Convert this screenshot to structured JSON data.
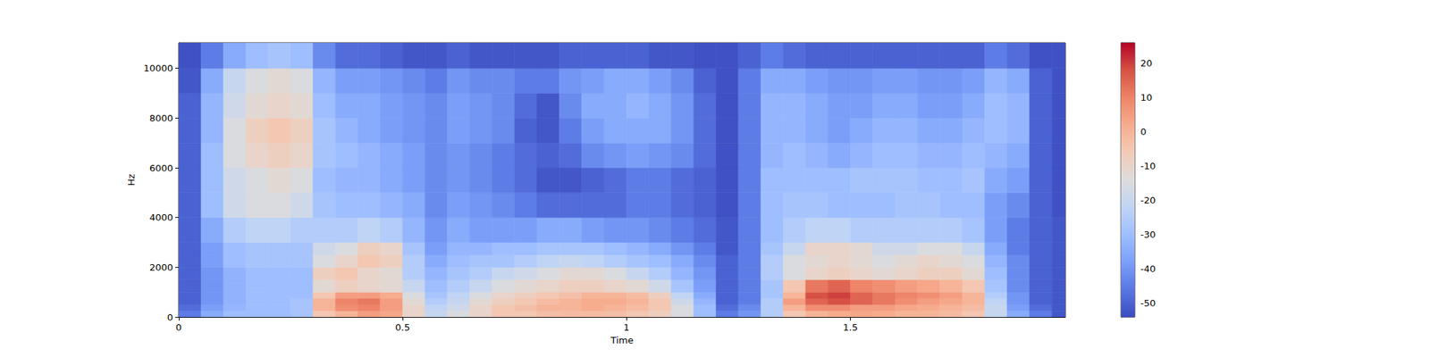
{
  "chart_data": {
    "type": "heatmap",
    "x_label": "Time",
    "y_label": "Hz",
    "xlim": [
      0,
      1.98
    ],
    "xticks": [
      0,
      0.5,
      1,
      1.5
    ],
    "ylim": [
      0,
      11025
    ],
    "yticks": [
      0,
      2000,
      4000,
      6000,
      8000,
      10000
    ],
    "x_edges": [
      0,
      0.05,
      0.1,
      0.15,
      0.2,
      0.25,
      0.3,
      0.35,
      0.4,
      0.45,
      0.5,
      0.55,
      0.6,
      0.65,
      0.7,
      0.75,
      0.8,
      0.85,
      0.9,
      0.95,
      1.0,
      1.05,
      1.1,
      1.15,
      1.2,
      1.25,
      1.3,
      1.35,
      1.4,
      1.45,
      1.5,
      1.55,
      1.6,
      1.65,
      1.7,
      1.75,
      1.8,
      1.85,
      1.9,
      1.95,
      1.98
    ],
    "y_edges": [
      0,
      250,
      500,
      750,
      1000,
      1500,
      2000,
      2500,
      3000,
      4000,
      5000,
      6000,
      7000,
      8000,
      9000,
      10000,
      11025
    ],
    "cells": [
      [
        -45,
        -35,
        -30,
        -30,
        -30,
        -28,
        -5,
        0,
        5,
        3,
        -10,
        -20,
        -15,
        -10,
        -5,
        -5,
        -3,
        -2,
        -2,
        -3,
        -5,
        -8,
        -15,
        -30,
        -45,
        -40,
        -25,
        -5,
        0,
        2,
        3,
        2,
        0,
        0,
        -2,
        -5,
        -20,
        -35,
        -45,
        -52
      ],
      [
        -48,
        -38,
        -32,
        -30,
        -30,
        -28,
        0,
        8,
        10,
        5,
        -10,
        -22,
        -18,
        -10,
        -5,
        -3,
        0,
        0,
        2,
        0,
        -2,
        -5,
        -15,
        -30,
        -48,
        -42,
        -25,
        0,
        8,
        8,
        5,
        5,
        3,
        2,
        0,
        -2,
        -20,
        -38,
        -48,
        -52
      ],
      [
        -50,
        -40,
        -33,
        -30,
        -30,
        -28,
        0,
        10,
        12,
        5,
        -12,
        -25,
        -20,
        -12,
        -8,
        -5,
        -2,
        0,
        2,
        2,
        0,
        -5,
        -18,
        -32,
        -50,
        -45,
        -25,
        5,
        15,
        18,
        15,
        12,
        8,
        5,
        3,
        0,
        -22,
        -40,
        -50,
        -52
      ],
      [
        -50,
        -40,
        -33,
        -30,
        -30,
        -30,
        -5,
        5,
        5,
        2,
        -15,
        -28,
        -22,
        -15,
        -10,
        -8,
        -5,
        -3,
        0,
        0,
        -2,
        -8,
        -22,
        -35,
        -50,
        -45,
        -28,
        0,
        18,
        20,
        15,
        12,
        10,
        8,
        5,
        0,
        -25,
        -40,
        -50,
        -52
      ],
      [
        -50,
        -40,
        -33,
        -30,
        -30,
        -30,
        -12,
        -8,
        -10,
        -12,
        -20,
        -30,
        -25,
        -20,
        -15,
        -12,
        -10,
        -8,
        -8,
        -10,
        -12,
        -18,
        -28,
        -38,
        -50,
        -45,
        -28,
        -5,
        12,
        15,
        10,
        8,
        5,
        3,
        0,
        -5,
        -28,
        -42,
        -50,
        -52
      ],
      [
        -50,
        -40,
        -33,
        -30,
        -30,
        -30,
        -8,
        -5,
        -10,
        -12,
        -25,
        -32,
        -28,
        -25,
        -20,
        -18,
        -15,
        -12,
        -12,
        -15,
        -20,
        -25,
        -32,
        -40,
        -50,
        -45,
        -25,
        -15,
        -10,
        -8,
        -10,
        -12,
        -10,
        -8,
        -8,
        -12,
        -30,
        -42,
        -50,
        -52
      ],
      [
        -50,
        -38,
        -30,
        -28,
        -28,
        -28,
        -15,
        -10,
        -5,
        -8,
        -25,
        -35,
        -30,
        -28,
        -28,
        -25,
        -22,
        -20,
        -22,
        -25,
        -28,
        -30,
        -35,
        -42,
        -50,
        -45,
        -25,
        -15,
        -12,
        -10,
        -12,
        -15,
        -12,
        -10,
        -12,
        -15,
        -32,
        -42,
        -50,
        -52
      ],
      [
        -50,
        -38,
        -30,
        -28,
        -28,
        -28,
        -18,
        -15,
        -8,
        -10,
        -28,
        -38,
        -32,
        -32,
        -30,
        -30,
        -28,
        -28,
        -28,
        -30,
        -32,
        -35,
        -40,
        -45,
        -52,
        -45,
        -28,
        -20,
        -10,
        -10,
        -12,
        -18,
        -18,
        -15,
        -15,
        -20,
        -35,
        -45,
        -50,
        -52
      ],
      [
        -50,
        -35,
        -25,
        -22,
        -22,
        -25,
        -25,
        -25,
        -22,
        -25,
        -32,
        -40,
        -35,
        -38,
        -38,
        -38,
        -35,
        -35,
        -38,
        -40,
        -40,
        -42,
        -45,
        -48,
        -52,
        -45,
        -30,
        -25,
        -22,
        -22,
        -25,
        -25,
        -25,
        -25,
        -25,
        -28,
        -38,
        -45,
        -50,
        -52
      ],
      [
        -50,
        -30,
        -18,
        -15,
        -15,
        -18,
        -28,
        -30,
        -30,
        -32,
        -35,
        -42,
        -38,
        -40,
        -42,
        -45,
        -48,
        -48,
        -48,
        -48,
        -45,
        -45,
        -48,
        -50,
        -53,
        -45,
        -30,
        -28,
        -28,
        -30,
        -30,
        -30,
        -28,
        -28,
        -30,
        -30,
        -38,
        -42,
        -50,
        -53
      ],
      [
        -50,
        -30,
        -18,
        -15,
        -12,
        -15,
        -30,
        -32,
        -32,
        -35,
        -38,
        -42,
        -40,
        -42,
        -45,
        -48,
        -52,
        -52,
        -50,
        -48,
        -45,
        -45,
        -48,
        -50,
        -53,
        -45,
        -30,
        -30,
        -30,
        -30,
        -28,
        -28,
        -28,
        -30,
        -30,
        -28,
        -35,
        -38,
        -50,
        -53
      ],
      [
        -50,
        -30,
        -15,
        -10,
        -8,
        -10,
        -28,
        -30,
        -32,
        -35,
        -38,
        -42,
        -40,
        -42,
        -45,
        -48,
        -50,
        -48,
        -42,
        -40,
        -38,
        -40,
        -42,
        -48,
        -53,
        -45,
        -32,
        -30,
        -32,
        -35,
        -32,
        -30,
        -30,
        -32,
        -32,
        -30,
        -32,
        -35,
        -50,
        -53
      ],
      [
        -50,
        -32,
        -15,
        -8,
        -5,
        -8,
        -28,
        -32,
        -35,
        -38,
        -40,
        -42,
        -38,
        -40,
        -42,
        -50,
        -52,
        -45,
        -38,
        -35,
        -35,
        -35,
        -40,
        -48,
        -53,
        -45,
        -32,
        -32,
        -35,
        -38,
        -35,
        -32,
        -32,
        -35,
        -35,
        -32,
        -30,
        -32,
        -50,
        -53
      ],
      [
        -50,
        -32,
        -18,
        -12,
        -10,
        -12,
        -30,
        -35,
        -35,
        -38,
        -40,
        -42,
        -38,
        -40,
        -42,
        -48,
        -52,
        -42,
        -35,
        -35,
        -32,
        -35,
        -40,
        -48,
        -53,
        -45,
        -32,
        -32,
        -35,
        -38,
        -38,
        -35,
        -35,
        -38,
        -38,
        -35,
        -30,
        -32,
        -50,
        -53
      ],
      [
        -52,
        -35,
        -20,
        -15,
        -12,
        -15,
        -32,
        -38,
        -38,
        -40,
        -42,
        -45,
        -40,
        -42,
        -42,
        -45,
        -45,
        -40,
        -38,
        -35,
        -35,
        -38,
        -42,
        -50,
        -53,
        -45,
        -35,
        -35,
        -38,
        -40,
        -40,
        -38,
        -38,
        -40,
        -40,
        -38,
        -32,
        -35,
        -50,
        -53
      ],
      [
        -53,
        -45,
        -35,
        -30,
        -28,
        -30,
        -42,
        -48,
        -48,
        -50,
        -52,
        -52,
        -50,
        -52,
        -52,
        -52,
        -52,
        -50,
        -50,
        -50,
        -50,
        -52,
        -52,
        -53,
        -53,
        -50,
        -45,
        -48,
        -50,
        -50,
        -50,
        -50,
        -50,
        -50,
        -50,
        -50,
        -45,
        -48,
        -53,
        -53
      ]
    ],
    "colorbar": {
      "range": [
        -54,
        26
      ],
      "ticks": [
        -50,
        -40,
        -30,
        -20,
        -10,
        0,
        10,
        20
      ]
    }
  }
}
